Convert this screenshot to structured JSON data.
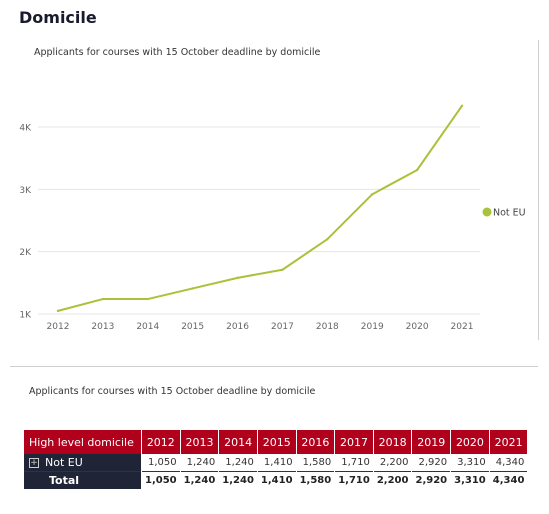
{
  "section_title": "Domicile",
  "chart_data": {
    "type": "line",
    "title": "Applicants for courses with 15 October deadline  by domicile",
    "xlabel": "",
    "ylabel": "",
    "x": [
      "2012",
      "2013",
      "2014",
      "2015",
      "2016",
      "2017",
      "2018",
      "2019",
      "2020",
      "2021"
    ],
    "series": [
      {
        "name": "Not EU",
        "values": [
          1050,
          1240,
          1240,
          1410,
          1580,
          1710,
          2200,
          2920,
          3310,
          4340
        ],
        "color": "#a8c23a"
      }
    ],
    "ylim": [
      1000,
      4400
    ],
    "yticks": [
      1000,
      2000,
      3000,
      4000
    ],
    "ytick_labels": [
      "1K",
      "2K",
      "3K",
      "4K"
    ],
    "grid": true,
    "legend": "right"
  },
  "table": {
    "title": "Applicants for courses with 15 October deadline  by domicile",
    "header_label": "High level domicile",
    "columns": [
      "2012",
      "2013",
      "2014",
      "2015",
      "2016",
      "2017",
      "2018",
      "2019",
      "2020",
      "2021"
    ],
    "rows": [
      {
        "label": "Not EU",
        "values": [
          "1,050",
          "1,240",
          "1,240",
          "1,410",
          "1,580",
          "1,710",
          "2,200",
          "2,920",
          "3,310",
          "4,340"
        ]
      },
      {
        "label": "Total",
        "values": [
          "1,050",
          "1,240",
          "1,240",
          "1,410",
          "1,580",
          "1,710",
          "2,200",
          "2,920",
          "3,310",
          "4,340"
        ]
      }
    ],
    "expand_icon": "plus-box-icon",
    "header_color": "#b0001c",
    "row_label_color": "#1f2436"
  }
}
